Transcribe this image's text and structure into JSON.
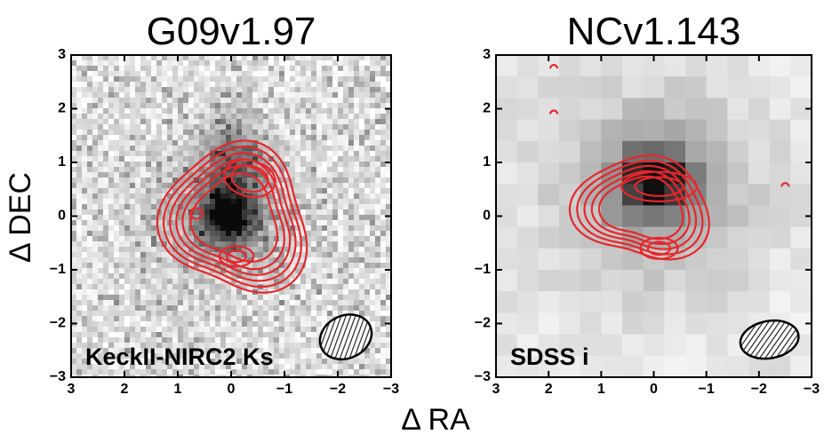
{
  "xlabel": "Δ RA",
  "ylabel": "Δ DEC",
  "chart_data": [
    {
      "type": "image",
      "title": "G09v1.97",
      "annotation": "KeckII-NIRC2 Ks",
      "xlim": [
        3,
        -3
      ],
      "ylim": [
        -3,
        3
      ],
      "xticks": [
        3,
        2,
        1,
        0,
        {
          "value": -1,
          "label": "−1"
        },
        {
          "value": -2,
          "label": "−2"
        },
        {
          "value": -3,
          "label": "−3"
        }
      ],
      "yticks": [
        3,
        2,
        1,
        0,
        {
          "value": -1,
          "label": "−1"
        },
        {
          "value": -2,
          "label": "−2"
        },
        {
          "value": -3,
          "label": "−3"
        }
      ]
    },
    {
      "type": "image",
      "title": "NCv1.143",
      "annotation": "SDSS i",
      "xlim": [
        3,
        -3
      ],
      "ylim": [
        -3,
        3
      ],
      "xticks": [
        3,
        2,
        1,
        0,
        {
          "value": -1,
          "label": "−1"
        },
        {
          "value": -2,
          "label": "−2"
        },
        {
          "value": -3,
          "label": "−3"
        }
      ],
      "yticks": [
        3,
        2,
        1,
        0,
        {
          "value": -1,
          "label": "−1"
        },
        {
          "value": -2,
          "label": "−2"
        },
        {
          "value": -3,
          "label": "−3"
        }
      ]
    }
  ]
}
